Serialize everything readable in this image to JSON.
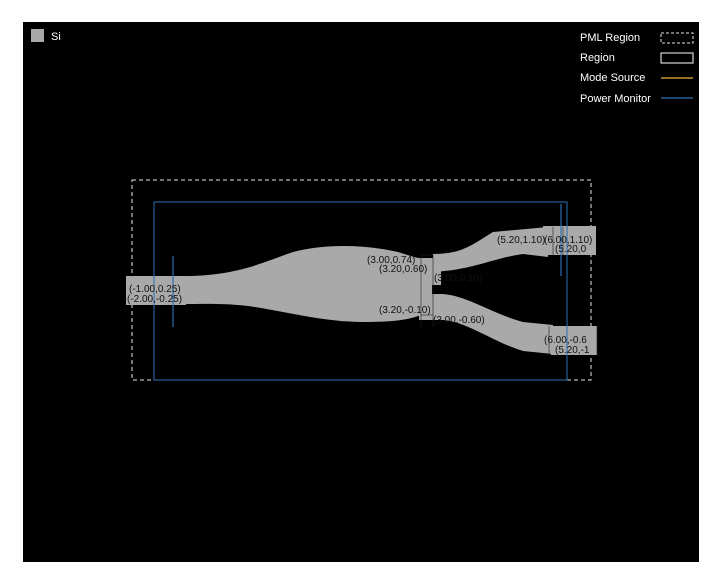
{
  "legend_left": {
    "material": "Si",
    "color": "#a9a9a9"
  },
  "legend_right": {
    "items": [
      {
        "label": "PML Region",
        "style": "dashed",
        "color": "#e6e6e6"
      },
      {
        "label": "Region",
        "style": "solid",
        "color": "#ffffff"
      },
      {
        "label": "Mode Source",
        "style": "line",
        "color": "#f0b040"
      },
      {
        "label": "Power Monitor",
        "style": "line",
        "color": "#2b6fb5"
      }
    ]
  },
  "vertex_labels": {
    "in_top": "(-1.00,0.25)",
    "in_bottom": "(-2.00,-0.25)",
    "mmi_top_a": "(3.00,0.74)",
    "mmi_top_b": "(3.20,0.60)",
    "gap_overlap": "(3.00,0.10)",
    "mmi_mid": "(3.20,-0.10)",
    "mmi_bottom": "(3.00,-0.60)",
    "out_top_a": "(5.20,1.10)",
    "out_top_b": "(6.00,1.10)",
    "out_top_c": "(5.20,0",
    "out_bottom_a": "(6.00,-0.6",
    "out_bottom_b": "(5.20,-1"
  }
}
